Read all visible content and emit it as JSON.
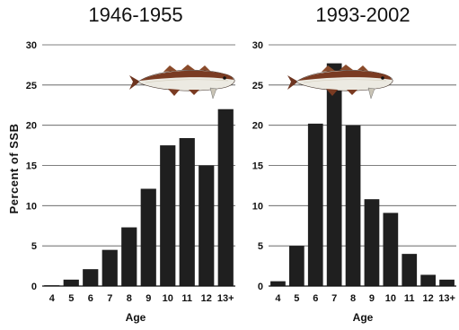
{
  "chart_data": [
    {
      "type": "bar",
      "title": "1946-1955",
      "xlabel": "Age",
      "ylabel": "Percent of SSB",
      "categories": [
        "4",
        "5",
        "6",
        "7",
        "8",
        "9",
        "10",
        "11",
        "12",
        "13+"
      ],
      "values": [
        0.1,
        0.8,
        2.1,
        4.5,
        7.3,
        12.1,
        17.5,
        18.4,
        15.0,
        22.0
      ],
      "ylim": [
        0,
        30
      ],
      "yticks": [
        0,
        5,
        10,
        15,
        20,
        25,
        30
      ],
      "grid": true,
      "bar_color": "#1f1f1f"
    },
    {
      "type": "bar",
      "title": "1993-2002",
      "xlabel": "Age",
      "categories": [
        "4",
        "5",
        "6",
        "7",
        "8",
        "9",
        "10",
        "11",
        "12",
        "13+"
      ],
      "values": [
        0.6,
        5.0,
        20.2,
        27.7,
        20.0,
        10.8,
        9.1,
        4.0,
        1.4,
        0.8
      ],
      "ylim": [
        0,
        30
      ],
      "yticks": [
        0,
        5,
        10,
        15,
        20,
        25,
        30
      ],
      "grid": true,
      "bar_color": "#1f1f1f"
    }
  ],
  "decoration": {
    "image": "cod-fish-illustration",
    "colors": {
      "back": "#7a3b22",
      "belly": "#eceae2",
      "fin": "#8a4a2a"
    }
  }
}
